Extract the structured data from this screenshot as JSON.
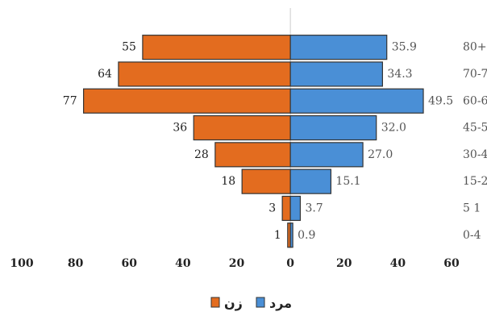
{
  "chart_data": {
    "type": "pyramid",
    "categories": [
      "80+",
      "70-7",
      "60-6",
      "45-5",
      "30-4",
      "15-2",
      "5 1",
      "0-4"
    ],
    "series": [
      {
        "name": "زن",
        "color": "#e36c1f",
        "values": [
          55,
          64,
          77,
          36,
          28,
          18,
          3,
          1
        ]
      },
      {
        "name": "مرد",
        "color": "#4a8fd6",
        "values": [
          35.9,
          34.3,
          49.5,
          32,
          27,
          15.1,
          3.7,
          0.9
        ],
        "value_labels": [
          "35.9",
          "34.3",
          "49.5",
          "32.0",
          "27.0",
          "15.1",
          "3.7",
          "0.9"
        ]
      }
    ],
    "xlim": [
      -100,
      60
    ],
    "xticks": [
      {
        "value": -100,
        "label": "100"
      },
      {
        "value": -80,
        "label": "80"
      },
      {
        "value": -60,
        "label": "60"
      },
      {
        "value": -40,
        "label": "40"
      },
      {
        "value": -20,
        "label": "20"
      },
      0,
      20,
      40,
      60
    ]
  }
}
